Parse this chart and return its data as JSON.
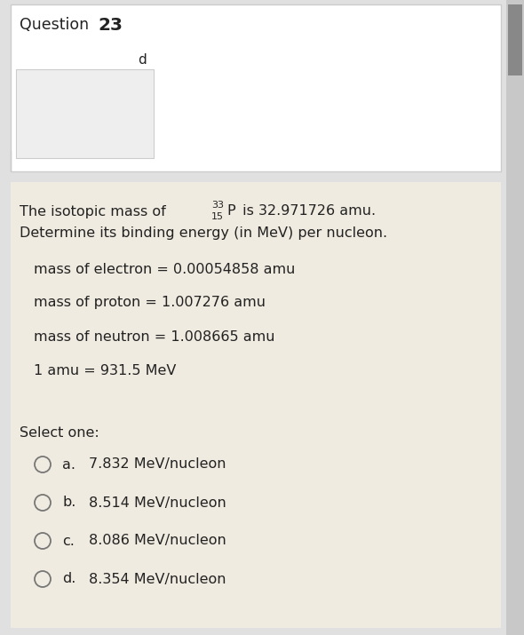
{
  "question_number": "23",
  "top_bg_color": "#ffffff",
  "bottom_bg_color": "#f0ebe0",
  "border_color": "#cccccc",
  "text_color": "#222222",
  "title_text": "Question",
  "title_bold": "23",
  "letter_d": "d",
  "main_text_line1_prefix": "The isotopic mass of ",
  "superscript": "33",
  "subscript": "15",
  "element": "P",
  "main_text_line1_suffix": " is 32.971726 amu.",
  "main_text_line2": "Determine its binding energy (in MeV) per nucleon.",
  "params": [
    "mass of electron = 0.00054858 amu",
    "mass of proton = 1.007276 amu",
    "mass of neutron = 1.008665 amu",
    "1 amu = 931.5 MeV"
  ],
  "select_one": "Select one:",
  "options": [
    {
      "label": "a.",
      "text": "7.832 MeV/nucleon"
    },
    {
      "label": "b.",
      "text": "8.514 MeV/nucleon"
    },
    {
      "label": "c.",
      "text": "8.086 MeV/nucleon"
    },
    {
      "label": "d.",
      "text": "8.354 MeV/nucleon"
    }
  ],
  "circle_color": "#777777",
  "scrollbar_bg": "#c8c8c8",
  "scrollbar_thumb": "#888888",
  "fig_width": 5.9,
  "fig_height": 7.15,
  "dpi": 100
}
